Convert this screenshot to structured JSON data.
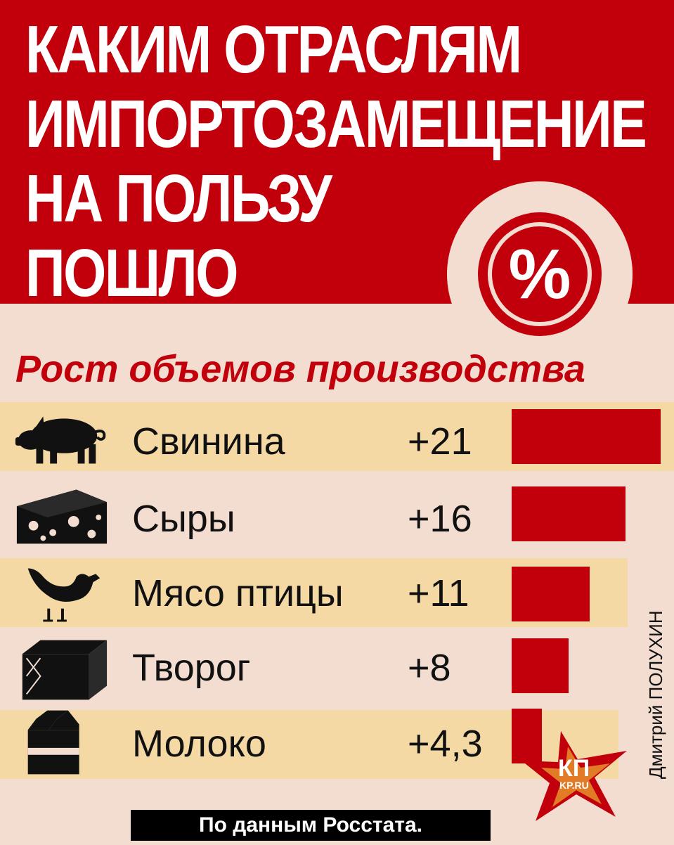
{
  "header": {
    "title_lines": [
      "КАКИМ ОТРАСЛЯМ",
      "ИМПОРТОЗАМЕЩЕНИЕ",
      "НА ПОЛЬЗУ",
      "ПОШЛО"
    ],
    "badge_symbol": "%"
  },
  "logo": {
    "brand": "КП",
    "site": "KP.RU"
  },
  "author": "Дмитрий ПОЛУХИН",
  "source": "По данным Росстата.",
  "colors": {
    "brand_red": "#c2000b",
    "background": "#f3ddd0",
    "band": "#f5d9a4",
    "text": "#111111"
  },
  "chart_data": {
    "type": "bar",
    "orientation": "horizontal",
    "title": "Рост объемов производства",
    "unit": "%",
    "categories": [
      "Свинина",
      "Сыры",
      "Мясо птицы",
      "Творог",
      "Молоко"
    ],
    "value_labels": [
      "+21",
      "+16",
      "+11",
      "+8",
      "+4,3"
    ],
    "values": [
      21,
      16,
      11,
      8,
      4.3
    ],
    "icons": [
      "pig-icon",
      "cheese-icon",
      "chicken-icon",
      "cottage-cheese-pack-icon",
      "milk-carton-icon"
    ],
    "bar_color": "#c2000b"
  }
}
